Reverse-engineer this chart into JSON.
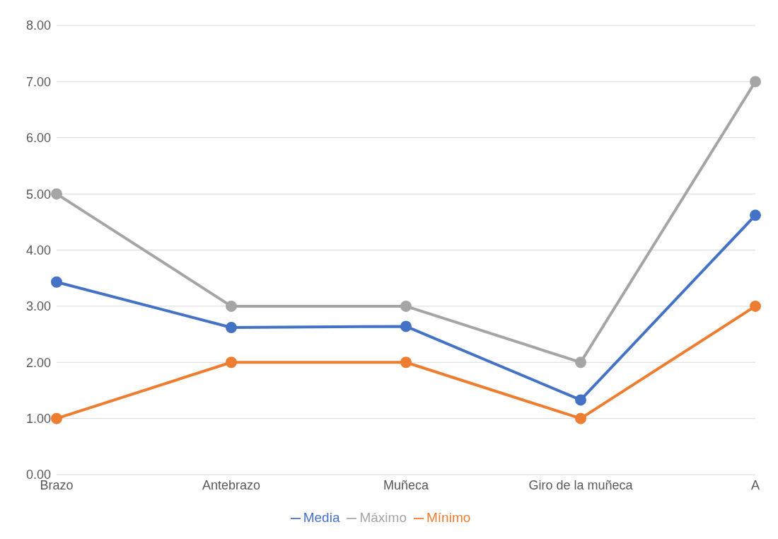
{
  "chart_data": {
    "type": "line",
    "categories": [
      "Brazo",
      "Antebrazo",
      "Muñeca",
      "Giro de la muñeca",
      "A"
    ],
    "series": [
      {
        "name": "Media",
        "color": "#4472c4",
        "values": [
          3.43,
          2.62,
          2.64,
          1.33,
          4.62
        ]
      },
      {
        "name": "Mínimo",
        "color": "#ed7d31",
        "values": [
          1,
          2,
          2,
          1,
          3
        ]
      },
      {
        "name": "Máximo",
        "color": "#a5a5a5",
        "values": [
          5,
          3,
          3,
          2,
          7
        ]
      }
    ],
    "ylim": [
      0,
      8
    ],
    "yticks": [
      {
        "value": 0,
        "label": "0.00"
      },
      {
        "value": 1,
        "label": "1.00"
      },
      {
        "value": 2,
        "label": "2.00"
      },
      {
        "value": 3,
        "label": "3.00"
      },
      {
        "value": 4,
        "label": "4.00"
      },
      {
        "value": 5,
        "label": "5.00"
      },
      {
        "value": 6,
        "label": "6.00"
      },
      {
        "value": 7,
        "label": "7.00"
      },
      {
        "value": 8,
        "label": "8.00"
      }
    ],
    "grid": "y",
    "legend": "bottom",
    "marker": "circle",
    "line_style": "solid"
  }
}
